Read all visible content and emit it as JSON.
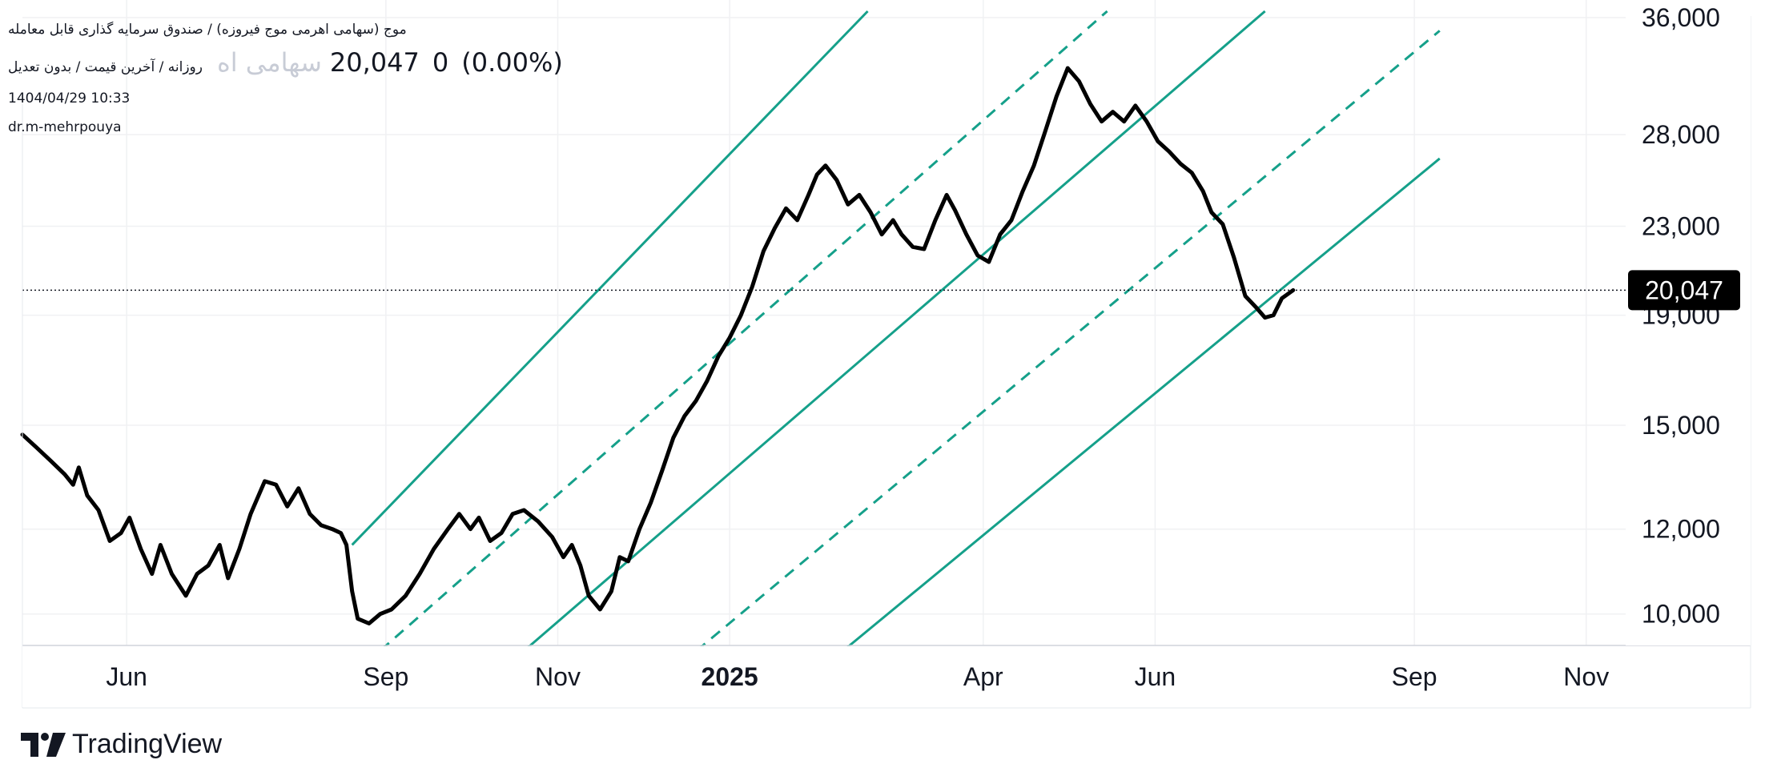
{
  "header": {
    "symbol_title": "موج (سهامی اهرمی موج فیروزه) / صندوق سرمایه گذاری قابل معامله",
    "interval_label": "روزانه / آخرین قیمت / بدون تعدیل",
    "ghost_name": "سهامی اه",
    "price": "20,047",
    "change": "0",
    "change_pct": "(0.00%)",
    "datetime": "1404/04/29 10:33",
    "author": "dr.m-mehrpouya"
  },
  "brand": {
    "name": "TradingView"
  },
  "colors": {
    "price_line": "#000000",
    "channel": "#15a08a",
    "grid": "#f0f1f3",
    "last_price_badge": "#000000"
  },
  "chart_data": {
    "type": "line",
    "scale": "log",
    "ylim": [
      9000,
      36000
    ],
    "xlim": [
      "2024-04-25",
      "2025-11-15"
    ],
    "yticks": [
      {
        "value": 10000,
        "label": "10,000"
      },
      {
        "value": 12000,
        "label": "12,000"
      },
      {
        "value": 15000,
        "label": "15,000"
      },
      {
        "value": 19000,
        "label": "19,000"
      },
      {
        "value": 23000,
        "label": "23,000"
      },
      {
        "value": 28000,
        "label": "28,000"
      },
      {
        "value": 36000,
        "label": "36,000"
      }
    ],
    "xticks": [
      {
        "date": "2024-06-01",
        "label": "Jun",
        "bold": false
      },
      {
        "date": "2024-09-01",
        "label": "Sep",
        "bold": false
      },
      {
        "date": "2024-11-01",
        "label": "Nov",
        "bold": false
      },
      {
        "date": "2025-01-01",
        "label": "2025",
        "bold": true
      },
      {
        "date": "2025-04-01",
        "label": "Apr",
        "bold": false
      },
      {
        "date": "2025-06-01",
        "label": "Jun",
        "bold": false
      },
      {
        "date": "2025-09-01",
        "label": "Sep",
        "bold": false
      },
      {
        "date": "2025-11-01",
        "label": "Nov",
        "bold": false
      }
    ],
    "last_price": {
      "value": 20047,
      "label": "20,047"
    },
    "series": [
      {
        "values": [
          [
            "2024-04-25",
            14700
          ],
          [
            "2024-04-30",
            14300
          ],
          [
            "2024-05-05",
            13900
          ],
          [
            "2024-05-10",
            13500
          ],
          [
            "2024-05-13",
            13200
          ],
          [
            "2024-05-15",
            13700
          ],
          [
            "2024-05-18",
            12900
          ],
          [
            "2024-05-22",
            12500
          ],
          [
            "2024-05-26",
            11700
          ],
          [
            "2024-05-30",
            11900
          ],
          [
            "2024-06-02",
            12300
          ],
          [
            "2024-06-06",
            11500
          ],
          [
            "2024-06-10",
            10900
          ],
          [
            "2024-06-13",
            11600
          ],
          [
            "2024-06-17",
            10900
          ],
          [
            "2024-06-22",
            10400
          ],
          [
            "2024-06-26",
            10900
          ],
          [
            "2024-06-30",
            11100
          ],
          [
            "2024-07-04",
            11600
          ],
          [
            "2024-07-07",
            10800
          ],
          [
            "2024-07-11",
            11500
          ],
          [
            "2024-07-15",
            12400
          ],
          [
            "2024-07-20",
            13300
          ],
          [
            "2024-07-24",
            13200
          ],
          [
            "2024-07-28",
            12600
          ],
          [
            "2024-08-01",
            13100
          ],
          [
            "2024-08-05",
            12400
          ],
          [
            "2024-08-09",
            12100
          ],
          [
            "2024-08-13",
            12000
          ],
          [
            "2024-08-16",
            11900
          ],
          [
            "2024-08-18",
            11600
          ],
          [
            "2024-08-20",
            10500
          ],
          [
            "2024-08-22",
            9900
          ],
          [
            "2024-08-26",
            9800
          ],
          [
            "2024-08-30",
            10000
          ],
          [
            "2024-09-03",
            10100
          ],
          [
            "2024-09-08",
            10400
          ],
          [
            "2024-09-13",
            10900
          ],
          [
            "2024-09-18",
            11500
          ],
          [
            "2024-09-23",
            12000
          ],
          [
            "2024-09-27",
            12400
          ],
          [
            "2024-10-01",
            12000
          ],
          [
            "2024-10-04",
            12300
          ],
          [
            "2024-10-08",
            11700
          ],
          [
            "2024-10-12",
            11900
          ],
          [
            "2024-10-16",
            12400
          ],
          [
            "2024-10-20",
            12500
          ],
          [
            "2024-10-25",
            12200
          ],
          [
            "2024-10-30",
            11800
          ],
          [
            "2024-11-03",
            11300
          ],
          [
            "2024-11-06",
            11600
          ],
          [
            "2024-11-09",
            11100
          ],
          [
            "2024-11-12",
            10400
          ],
          [
            "2024-11-16",
            10100
          ],
          [
            "2024-11-20",
            10500
          ],
          [
            "2024-11-23",
            11300
          ],
          [
            "2024-11-26",
            11200
          ],
          [
            "2024-11-30",
            12000
          ],
          [
            "2024-12-04",
            12700
          ],
          [
            "2024-12-08",
            13600
          ],
          [
            "2024-12-12",
            14600
          ],
          [
            "2024-12-16",
            15300
          ],
          [
            "2024-12-20",
            15800
          ],
          [
            "2024-12-24",
            16500
          ],
          [
            "2024-12-28",
            17400
          ],
          [
            "2025-01-01",
            18100
          ],
          [
            "2025-01-05",
            19000
          ],
          [
            "2025-01-09",
            20200
          ],
          [
            "2025-01-13",
            21800
          ],
          [
            "2025-01-17",
            22900
          ],
          [
            "2025-01-21",
            23900
          ],
          [
            "2025-01-25",
            23300
          ],
          [
            "2025-01-29",
            24600
          ],
          [
            "2025-02-01",
            25700
          ],
          [
            "2025-02-04",
            26200
          ],
          [
            "2025-02-08",
            25400
          ],
          [
            "2025-02-12",
            24100
          ],
          [
            "2025-02-16",
            24600
          ],
          [
            "2025-02-20",
            23700
          ],
          [
            "2025-02-24",
            22600
          ],
          [
            "2025-02-28",
            23300
          ],
          [
            "2025-03-03",
            22600
          ],
          [
            "2025-03-07",
            22000
          ],
          [
            "2025-03-11",
            21900
          ],
          [
            "2025-03-15",
            23300
          ],
          [
            "2025-03-19",
            24600
          ],
          [
            "2025-03-22",
            23800
          ],
          [
            "2025-03-26",
            22600
          ],
          [
            "2025-03-30",
            21600
          ],
          [
            "2025-04-03",
            21300
          ],
          [
            "2025-04-07",
            22600
          ],
          [
            "2025-04-11",
            23300
          ],
          [
            "2025-04-15",
            24800
          ],
          [
            "2025-04-19",
            26200
          ],
          [
            "2025-04-23",
            28200
          ],
          [
            "2025-04-27",
            30400
          ],
          [
            "2025-05-01",
            32300
          ],
          [
            "2025-05-05",
            31400
          ],
          [
            "2025-05-09",
            29900
          ],
          [
            "2025-05-13",
            28800
          ],
          [
            "2025-05-17",
            29400
          ],
          [
            "2025-05-21",
            28800
          ],
          [
            "2025-05-25",
            29800
          ],
          [
            "2025-05-29",
            28800
          ],
          [
            "2025-06-02",
            27600
          ],
          [
            "2025-06-06",
            27000
          ],
          [
            "2025-06-10",
            26300
          ],
          [
            "2025-06-14",
            25800
          ],
          [
            "2025-06-18",
            24800
          ],
          [
            "2025-06-21",
            23700
          ],
          [
            "2025-06-25",
            23100
          ],
          [
            "2025-06-29",
            21500
          ],
          [
            "2025-07-03",
            19800
          ],
          [
            "2025-07-07",
            19300
          ],
          [
            "2025-07-10",
            18900
          ],
          [
            "2025-07-13",
            19000
          ],
          [
            "2025-07-16",
            19700
          ],
          [
            "2025-07-20",
            20047
          ]
        ]
      }
    ],
    "channel": {
      "solid": [
        [
          [
            "2024-08-20",
            11600
          ],
          [
            "2025-02-19",
            36500
          ]
        ],
        [
          [
            "2024-10-15",
            9000
          ],
          [
            "2025-07-10",
            36500
          ]
        ],
        [
          [
            "2025-02-05",
            9000
          ],
          [
            "2025-09-10",
            26600
          ]
        ]
      ],
      "dashed": [
        [
          [
            "2024-08-25",
            9000
          ],
          [
            "2025-05-15",
            36500
          ]
        ],
        [
          [
            "2024-12-15",
            9000
          ],
          [
            "2025-09-10",
            35000
          ]
        ]
      ]
    }
  }
}
